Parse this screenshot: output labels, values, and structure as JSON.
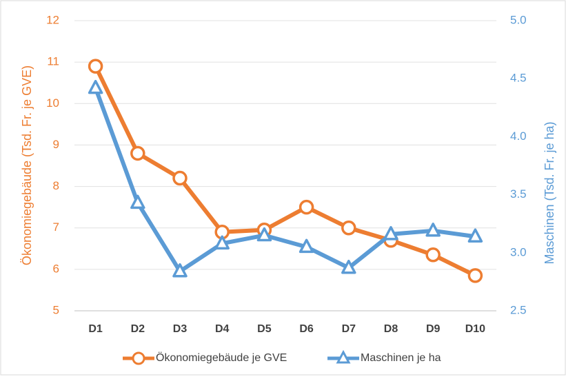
{
  "chart_data": {
    "type": "line",
    "categories": [
      "D1",
      "D2",
      "D3",
      "D4",
      "D5",
      "D6",
      "D7",
      "D8",
      "D9",
      "D10"
    ],
    "series": [
      {
        "name": "Ökonomiegebäude je GVE",
        "color": "#ed7d31",
        "values": [
          10.9,
          8.8,
          8.2,
          6.9,
          6.95,
          7.5,
          7.0,
          6.7,
          6.35,
          5.85
        ]
      },
      {
        "name": "Maschinen je ha",
        "color": "#5b9bd5",
        "axis": "y2",
        "values": [
          4.42,
          3.43,
          2.84,
          3.08,
          3.15,
          3.05,
          2.87,
          3.16,
          3.19,
          3.14
        ]
      }
    ],
    "ylabel": "Ökonomiegebäude (Tsd. Fr. je GVE)",
    "y2label": "Maschinen (Tsd. Fr. je ha)",
    "ylim": [
      5,
      12
    ],
    "yticks": [
      5,
      6,
      7,
      8,
      9,
      10,
      11,
      12
    ],
    "y2lim": [
      2.5,
      5
    ],
    "y2ticks": [
      2.5,
      {
        "value": 3,
        "label": "3.0"
      },
      3.5,
      {
        "value": 4,
        "label": "4.0"
      },
      4.5,
      {
        "value": 5,
        "label": "5.0"
      }
    ],
    "grid": true,
    "legend": "bottom"
  }
}
